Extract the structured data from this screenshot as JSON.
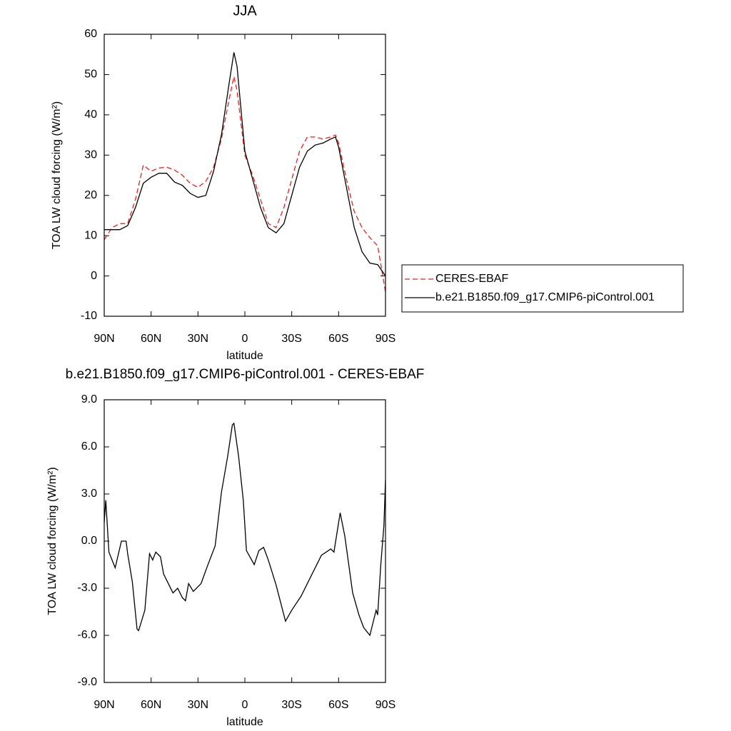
{
  "chart_data": [
    {
      "type": "line",
      "title": "JJA",
      "ylabel": "TOA LW cloud forcing (W/m²)",
      "xlabel": "latitude",
      "x": [
        90,
        85,
        80,
        75,
        70,
        65,
        60,
        55,
        50,
        45,
        40,
        35,
        30,
        25,
        20,
        15,
        10,
        7,
        5,
        0,
        -5,
        -10,
        -15,
        -20,
        -25,
        -30,
        -35,
        -40,
        -45,
        -50,
        -55,
        -58,
        -60,
        -65,
        -70,
        -75,
        -80,
        -85,
        -90
      ],
      "series": [
        {
          "name": "CERES-EBAF",
          "color": "#e8211d",
          "dashed": true,
          "values": [
            9,
            12,
            13,
            13,
            19,
            27.5,
            26,
            26.8,
            27,
            26.3,
            25,
            23,
            22,
            23.5,
            27,
            34,
            44,
            49.5,
            46,
            30,
            25,
            19,
            13,
            12,
            17,
            24,
            31,
            34.5,
            34.5,
            34,
            34.5,
            35,
            33,
            24,
            16,
            12,
            9.5,
            7.5,
            -4
          ]
        },
        {
          "name": "b.e21.B1850.f09_g17.CMIP6-piControl.001",
          "color": "#000000",
          "dashed": false,
          "values": [
            11.5,
            11.5,
            11.5,
            12.5,
            17,
            23,
            24.5,
            25.5,
            25.5,
            23.3,
            22.5,
            20.5,
            19.5,
            20,
            26,
            35,
            48,
            55.5,
            52,
            31,
            24,
            17,
            12,
            10.7,
            13,
            20,
            27,
            31,
            32.5,
            33,
            34,
            34.5,
            32,
            22,
            12,
            6,
            3.2,
            2.8,
            0
          ]
        }
      ],
      "xlim": [
        90,
        -90
      ],
      "xticks": [
        {
          "value": 90,
          "label": "90N"
        },
        {
          "value": 60,
          "label": "60N"
        },
        {
          "value": 30,
          "label": "30N"
        },
        0,
        {
          "value": -30,
          "label": "30S"
        },
        {
          "value": -60,
          "label": "60S"
        },
        {
          "value": -90,
          "label": "90S"
        }
      ],
      "ylim": [
        -10,
        60
      ],
      "yticks": [
        -10,
        0,
        10,
        20,
        30,
        40,
        50,
        60
      ],
      "legend": "right"
    },
    {
      "type": "line",
      "title": "b.e21.B1850.f09_g17.CMIP6-piControl.001 - CERES-EBAF",
      "ylabel": "TOA LW cloud forcing (W/m²)",
      "xlabel": "latitude",
      "x": [
        90,
        89,
        87,
        83,
        79,
        76,
        75,
        72,
        69,
        68,
        64,
        61,
        59,
        57,
        54,
        52,
        46,
        43,
        40,
        38,
        36,
        33,
        28,
        24,
        19,
        15,
        11,
        8,
        7,
        4,
        1,
        -1,
        -6,
        -9,
        -12,
        -15,
        -20,
        -26,
        -30,
        -36,
        -43,
        -49,
        -55,
        -57,
        -61,
        -64,
        -69,
        -73,
        -76,
        -80,
        -84,
        -85,
        -87,
        -89,
        -90
      ],
      "values": [
        1.2,
        2.6,
        -0.7,
        -1.7,
        0,
        0,
        -0.8,
        -2.6,
        -5.6,
        -5.7,
        -4.4,
        -0.8,
        -1.2,
        -0.7,
        -1.0,
        -2.1,
        -3.3,
        -3.0,
        -3.6,
        -3.8,
        -2.7,
        -3.2,
        -2.7,
        -1.6,
        -0.3,
        3.1,
        5.4,
        7.4,
        7.5,
        5.4,
        2.6,
        -0.6,
        -1.5,
        -0.6,
        -0.4,
        -1.2,
        -2.8,
        -5.1,
        -4.4,
        -3.5,
        -2.1,
        -0.9,
        -0.5,
        -0.7,
        1.8,
        0.3,
        -3.3,
        -4.7,
        -5.5,
        -6.0,
        -4.4,
        -4.7,
        -1.5,
        1.0,
        3.9
      ],
      "color": "#000000",
      "xlim": [
        90,
        -90
      ],
      "xticks": [
        {
          "value": 90,
          "label": "90N"
        },
        {
          "value": 60,
          "label": "60N"
        },
        {
          "value": 30,
          "label": "30N"
        },
        0,
        {
          "value": -30,
          "label": "30S"
        },
        {
          "value": -60,
          "label": "60S"
        },
        {
          "value": -90,
          "label": "90S"
        }
      ],
      "ylim": [
        -9,
        9
      ],
      "yticks": [
        {
          "value": -9,
          "label": "-9.0"
        },
        {
          "value": -6,
          "label": "-6.0"
        },
        {
          "value": -3,
          "label": "-3.0"
        },
        {
          "value": 0,
          "label": "0.0"
        },
        {
          "value": 3,
          "label": "3.0"
        },
        {
          "value": 6,
          "label": "6.0"
        },
        {
          "value": 9,
          "label": "9.0"
        }
      ]
    }
  ]
}
